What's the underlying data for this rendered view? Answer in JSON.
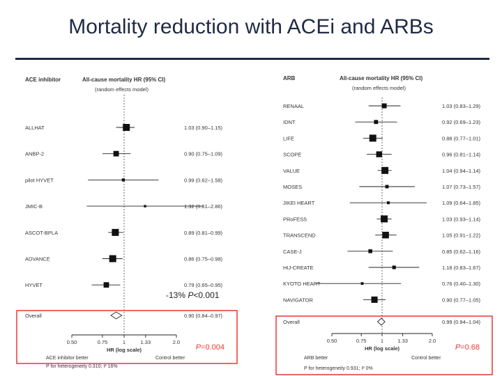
{
  "title": "Mortality reduction with ACEi and ARBs",
  "colors": {
    "title": "#1f2a44",
    "highlight": "#e53935",
    "marker": "#111111",
    "text": "#333333"
  },
  "chart_data": [
    {
      "type": "forest",
      "group_label": "ACE inhibitor",
      "column_header": "All-cause mortality HR (95% CI)",
      "column_subheader": "(random effects model)",
      "xlabel": "HR (log scale)",
      "xscale": "log",
      "xlim": [
        0.5,
        2.0
      ],
      "xticks": [
        0.5,
        0.75,
        1,
        1.33,
        2.0
      ],
      "xtick_labels": [
        "0.50",
        "0.75",
        "1",
        "1.33",
        "2.0"
      ],
      "left_favours": "ACE inhibitor better",
      "right_favours": "Control better",
      "studies": [
        {
          "name": "ALLHAT",
          "hr": 1.03,
          "lo": 0.9,
          "hi": 1.15,
          "label": "1.03 (0.90–1.15)"
        },
        {
          "name": "ANBP-2",
          "hr": 0.9,
          "lo": 0.75,
          "hi": 1.09,
          "label": "0.90 (0.75–1.09)"
        },
        {
          "name": "pilot HYVET",
          "hr": 0.99,
          "lo": 0.62,
          "hi": 1.58,
          "label": "0.99 (0.62–1.58)"
        },
        {
          "name": "JMIC-B",
          "hr": 1.32,
          "lo": 0.61,
          "hi": 2.86,
          "label": "1.32 (0.61–2.86)"
        },
        {
          "name": "ASCOT-BPLA",
          "hr": 0.89,
          "lo": 0.81,
          "hi": 0.99,
          "label": "0.89 (0.81–0.99)"
        },
        {
          "name": "ADVANCE",
          "hr": 0.86,
          "lo": 0.75,
          "hi": 0.98,
          "label": "0.86 (0.75–0.98)"
        },
        {
          "name": "HYVET",
          "hr": 0.79,
          "lo": 0.65,
          "hi": 0.95,
          "label": "0.79 (0.65–0.95)"
        }
      ],
      "overall": {
        "name": "Overall",
        "hr": 0.9,
        "lo": 0.84,
        "hi": 0.97,
        "label": "0.90 (0.84–0.97)"
      },
      "heterogeneity": "P for heterogeneity 0.310; I² 16%",
      "annotation": {
        "prefix": "-13% ",
        "p_italic": "P",
        "rest": "<0.001"
      },
      "p_value": {
        "p_italic": "P",
        "rest": "=0.004"
      }
    },
    {
      "type": "forest",
      "group_label": "ARB",
      "column_header": "All-cause mortality HR (95% CI)",
      "column_subheader": "(random effects model)",
      "xlabel": "HR (log scale)",
      "xscale": "log",
      "xlim": [
        0.5,
        2.0
      ],
      "xticks": [
        0.5,
        0.75,
        1,
        1.33,
        2.0
      ],
      "xtick_labels": [
        "0.50",
        "0.75",
        "1",
        "1.33",
        "2.0"
      ],
      "left_favours": "ARB better",
      "right_favours": "Control better",
      "studies": [
        {
          "name": "RENAAL",
          "hr": 1.03,
          "lo": 0.83,
          "hi": 1.29,
          "label": "1.03 (0.83–1.29)"
        },
        {
          "name": "IDNT",
          "hr": 0.92,
          "lo": 0.69,
          "hi": 1.23,
          "label": "0.92 (0.69–1.23)"
        },
        {
          "name": "LIFE",
          "hr": 0.88,
          "lo": 0.77,
          "hi": 1.01,
          "label": "0.88 (0.77–1.01)"
        },
        {
          "name": "SCOPE",
          "hr": 0.96,
          "lo": 0.81,
          "hi": 1.14,
          "label": "0.96 (0.81–1.14)"
        },
        {
          "name": "VALUE",
          "hr": 1.04,
          "lo": 0.94,
          "hi": 1.14,
          "label": "1.04 (0.94–1.14)"
        },
        {
          "name": "MOSES",
          "hr": 1.07,
          "lo": 0.73,
          "hi": 1.57,
          "label": "1.07 (0.73–1.57)"
        },
        {
          "name": "JIKEI HEART",
          "hr": 1.09,
          "lo": 0.64,
          "hi": 1.85,
          "label": "1.09 (0.64–1.85)"
        },
        {
          "name": "PRoFESS",
          "hr": 1.03,
          "lo": 0.93,
          "hi": 1.14,
          "label": "1.03 (0.93–1.14)"
        },
        {
          "name": "TRANSCEND",
          "hr": 1.05,
          "lo": 0.91,
          "hi": 1.22,
          "label": "1.05 (0.91–1.22)"
        },
        {
          "name": "CASE-J",
          "hr": 0.85,
          "lo": 0.62,
          "hi": 1.16,
          "label": "0.85 (0.62–1.16)"
        },
        {
          "name": "HIJ-CREATE",
          "hr": 1.18,
          "lo": 0.83,
          "hi": 1.67,
          "label": "1.18 (0.83–1.67)"
        },
        {
          "name": "KYOTO HEART",
          "hr": 0.76,
          "lo": 0.4,
          "hi": 1.3,
          "label": "0.76 (0.40–1.30)"
        },
        {
          "name": "NAVIGATOR",
          "hr": 0.9,
          "lo": 0.77,
          "hi": 1.05,
          "label": "0.90 (0.77–1.05)"
        }
      ],
      "overall": {
        "name": "Overall",
        "hr": 0.99,
        "lo": 0.94,
        "hi": 1.04,
        "label": "0.99 (0.94–1.04)"
      },
      "heterogeneity": "P for heterogeneity 0.931; I² 0%",
      "annotation": null,
      "p_value": {
        "p_italic": "P",
        "rest": "=0.68"
      }
    }
  ]
}
